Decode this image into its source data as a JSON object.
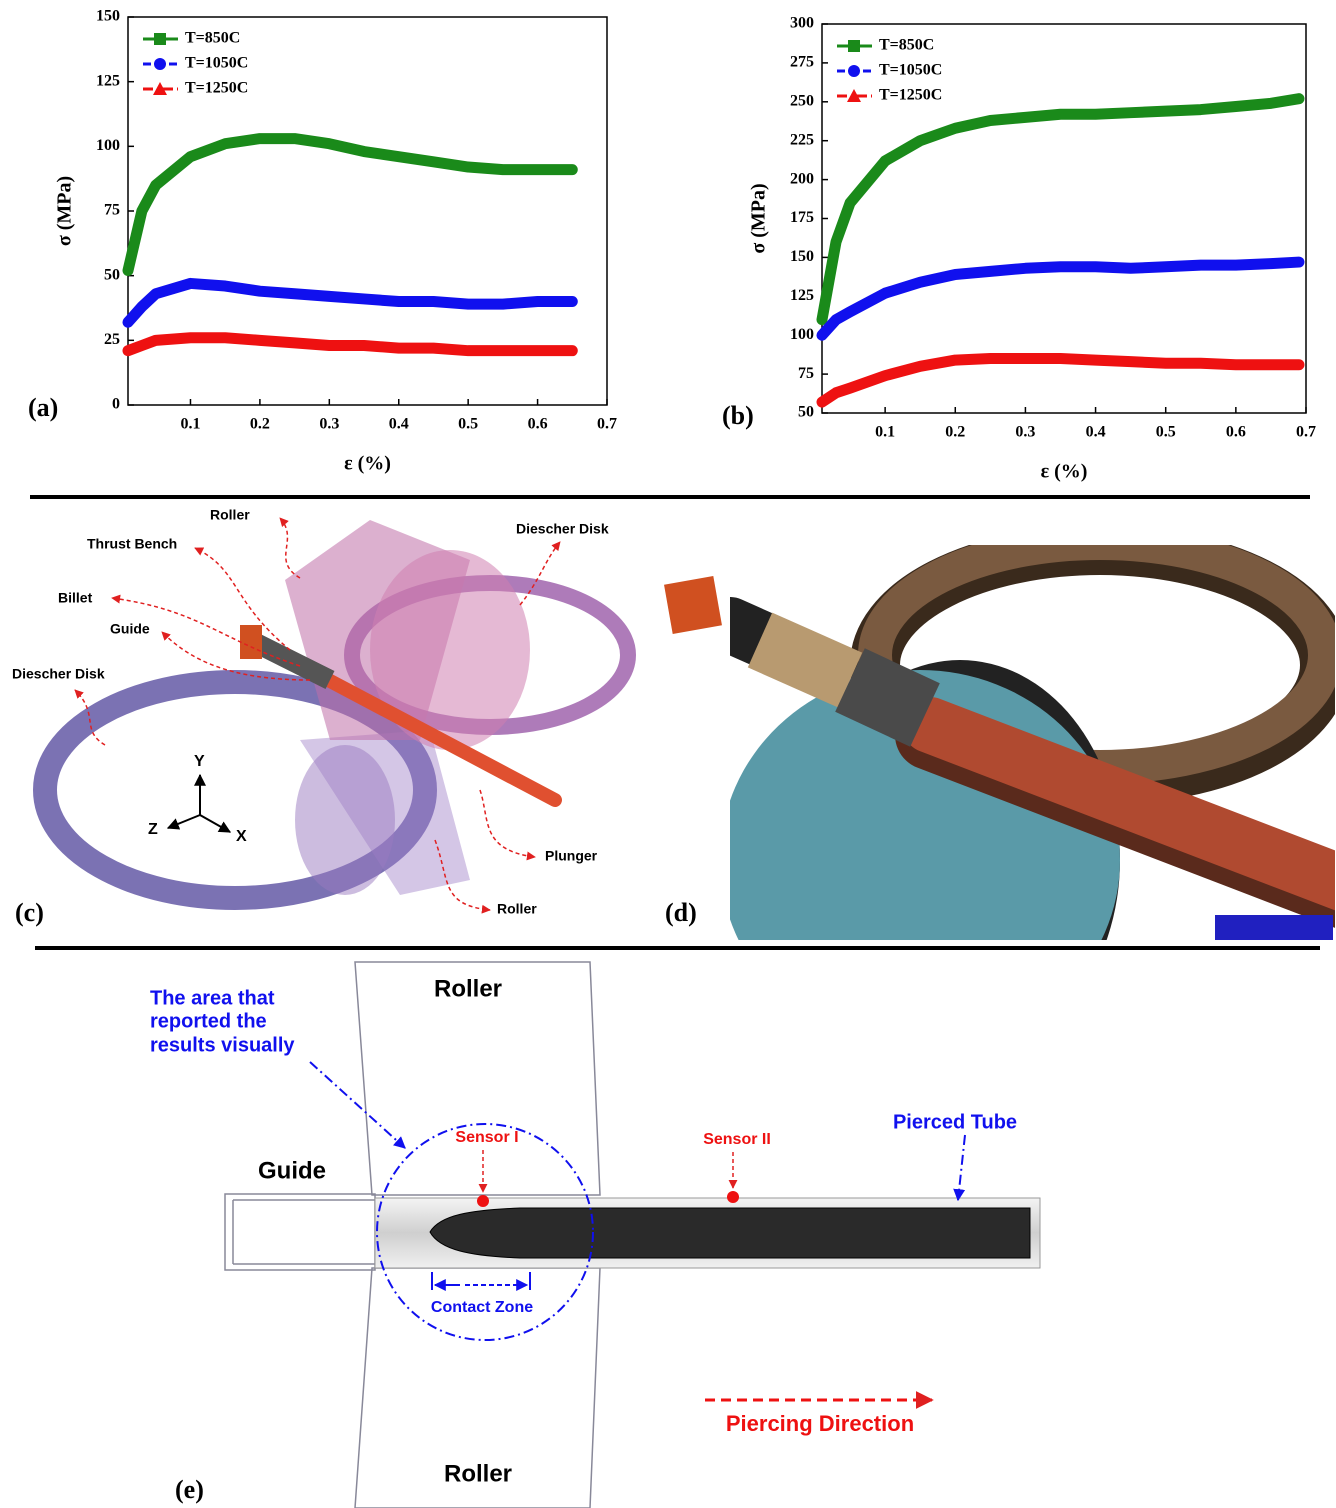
{
  "chart_data": [
    {
      "type": "line",
      "panel_label": "(a)",
      "x_label": "ε (%)",
      "y_label": "σ (MPa)",
      "xlim": [
        0.01,
        0.7
      ],
      "xticks": [
        0.1,
        0.2,
        0.3,
        0.4,
        0.5,
        0.6,
        0.7
      ],
      "ylim": [
        0,
        150
      ],
      "yticks": [
        0,
        25,
        50,
        75,
        100,
        125,
        150
      ],
      "legend": "upper left",
      "x": [
        0.01,
        0.03,
        0.05,
        0.1,
        0.15,
        0.2,
        0.25,
        0.3,
        0.35,
        0.4,
        0.45,
        0.5,
        0.55,
        0.6,
        0.65
      ],
      "series": [
        {
          "name": "T=850C",
          "color": "#1a8a1a",
          "marker": "square",
          "line_style": "solid",
          "values": [
            52,
            75,
            85,
            96,
            101,
            103,
            103,
            101,
            98,
            96,
            94,
            92,
            91,
            91,
            91
          ]
        },
        {
          "name": "T=1050C",
          "color": "#1010ee",
          "marker": "circle",
          "line_style": "dashed",
          "values": [
            32,
            38,
            43,
            47,
            46,
            44,
            43,
            42,
            41,
            40,
            40,
            39,
            39,
            40,
            40
          ]
        },
        {
          "name": "T=1250C",
          "color": "#ee1111",
          "marker": "triangle",
          "line_style": "dashdot",
          "values": [
            21,
            23,
            25,
            26,
            26,
            25,
            24,
            23,
            23,
            22,
            22,
            21,
            21,
            21,
            21
          ]
        }
      ]
    },
    {
      "type": "line",
      "panel_label": "(b)",
      "x_label": "ε (%)",
      "y_label": "σ (MPa)",
      "xlim": [
        0.01,
        0.7
      ],
      "xticks": [
        0.1,
        0.2,
        0.3,
        0.4,
        0.5,
        0.6,
        0.7
      ],
      "ylim": [
        50,
        300
      ],
      "yticks": [
        50,
        75,
        100,
        125,
        150,
        175,
        200,
        225,
        250,
        275,
        300
      ],
      "legend": "upper left",
      "x": [
        0.01,
        0.03,
        0.05,
        0.1,
        0.15,
        0.2,
        0.25,
        0.3,
        0.35,
        0.4,
        0.45,
        0.5,
        0.55,
        0.6,
        0.65,
        0.69
      ],
      "series": [
        {
          "name": "T=850C",
          "color": "#1a8a1a",
          "marker": "square",
          "line_style": "solid",
          "values": [
            110,
            160,
            185,
            212,
            225,
            233,
            238,
            240,
            242,
            242,
            243,
            244,
            245,
            247,
            249,
            252
          ]
        },
        {
          "name": "T=1050C",
          "color": "#1010ee",
          "marker": "circle",
          "line_style": "dashed",
          "values": [
            100,
            110,
            115,
            127,
            134,
            139,
            141,
            143,
            144,
            144,
            143,
            144,
            145,
            145,
            146,
            147
          ]
        },
        {
          "name": "T=1250C",
          "color": "#ee1111",
          "marker": "triangle",
          "line_style": "dashdot",
          "values": [
            57,
            63,
            66,
            74,
            80,
            84,
            85,
            85,
            85,
            84,
            83,
            82,
            82,
            81,
            81,
            81
          ]
        }
      ]
    }
  ],
  "panel_c": {
    "label": "(c)",
    "callouts": [
      "Roller",
      "Thrust Bench",
      "Billet",
      "Guide",
      "Diescher Disk",
      "Diescher Disk",
      "Plunger",
      "Roller"
    ],
    "axes": [
      "Y",
      "Z",
      "X"
    ]
  },
  "panel_d": {
    "label": "(d)"
  },
  "panel_e": {
    "label": "(e)",
    "roller_top": "Roller",
    "roller_bottom": "Roller",
    "guide": "Guide",
    "area_note": [
      "The area that",
      "reported the",
      "results visually"
    ],
    "sensor_1": "Sensor I",
    "sensor_2": "Sensor II",
    "tube": "Pierced Tube",
    "contact_zone": "Contact Zone",
    "direction": "Piercing Direction"
  }
}
